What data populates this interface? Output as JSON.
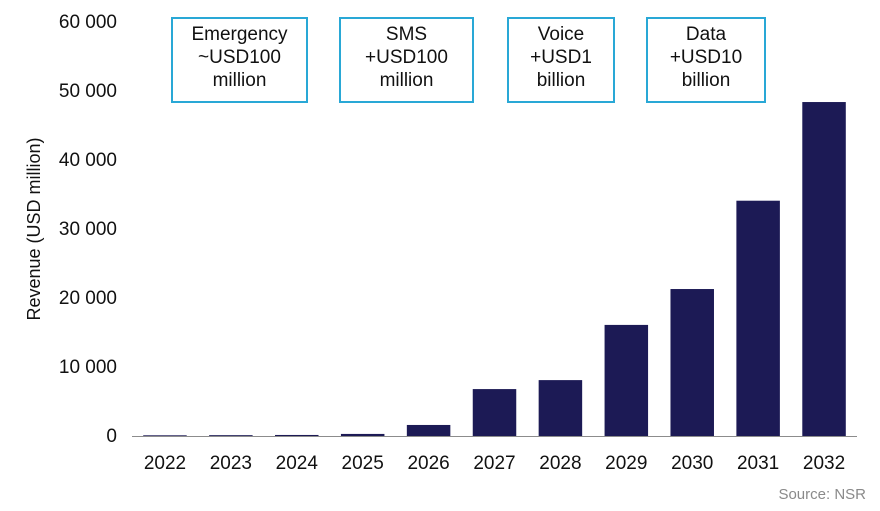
{
  "chart_data": {
    "type": "bar",
    "categories": [
      "2022",
      "2023",
      "2024",
      "2025",
      "2026",
      "2027",
      "2028",
      "2029",
      "2030",
      "2031",
      "2032"
    ],
    "values": [
      100,
      120,
      150,
      300,
      1600,
      6800,
      8100,
      16100,
      21300,
      34100,
      48400
    ],
    "ylabel": "Revenue (USD million)",
    "xlabel": "",
    "ylim": [
      0,
      60000
    ],
    "yticks": [
      0,
      10000,
      20000,
      30000,
      40000,
      50000,
      60000
    ],
    "ytick_labels": [
      "0",
      "10 000",
      "20 000",
      "30 000",
      "40 000",
      "50 000",
      "60 000"
    ],
    "grid": false,
    "bar_color": "#1c1a55",
    "annotations": [
      {
        "lines": [
          "Emergency",
          "~USD100",
          "million"
        ]
      },
      {
        "lines": [
          "SMS",
          "+USD100",
          "million"
        ]
      },
      {
        "lines": [
          "Voice",
          "+USD1",
          "billion"
        ]
      },
      {
        "lines": [
          "Data",
          "+USD10",
          "billion"
        ]
      }
    ],
    "source": "Source: NSR"
  }
}
